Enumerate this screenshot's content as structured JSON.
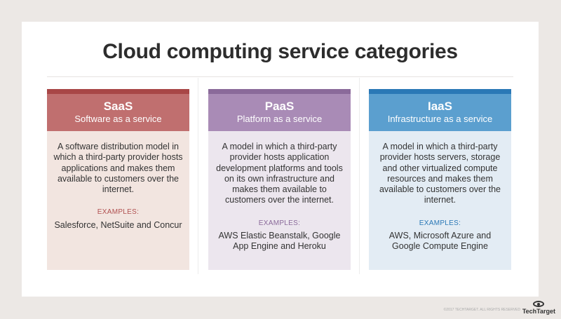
{
  "title": "Cloud computing service categories",
  "columns": [
    {
      "name": "SaaS",
      "subtitle": "Software as a service",
      "description": "A software distribution model in which a third-party provider hosts applications and makes them available to customers over the internet.",
      "examples_label": "EXAMPLES:",
      "examples": "Salesforce, NetSuite and Concur",
      "colors": {
        "strip": "#a84646",
        "header": "#c06f6f",
        "body": "#f2e5e0",
        "label": "#b05050"
      }
    },
    {
      "name": "PaaS",
      "subtitle": "Platform as a service",
      "description": "A model in which a third-party provider hosts application development platforms and tools on its own infrastructure and makes them available to customers over the internet.",
      "examples_label": "EXAMPLES:",
      "examples": "AWS Elastic Beanstalk, Google App Engine and Heroku",
      "colors": {
        "strip": "#8a6a9a",
        "header": "#a98bb6",
        "body": "#ece6ee",
        "label": "#8a6a9a"
      }
    },
    {
      "name": "IaaS",
      "subtitle": "Infrastructure as a service",
      "description": "A model in which a third-party provider hosts servers, storage and other virtualized compute resources and makes them available to customers over the internet.",
      "examples_label": "EXAMPLES:",
      "examples": "AWS, Microsoft Azure and Google Compute Engine",
      "colors": {
        "strip": "#2a78b6",
        "header": "#5b9fcf",
        "body": "#e3ecf4",
        "label": "#2a78b6"
      }
    }
  ],
  "footer": {
    "copyright": "©2017 TECHTARGET. ALL RIGHTS RESERVED",
    "logo": "TechTarget"
  }
}
